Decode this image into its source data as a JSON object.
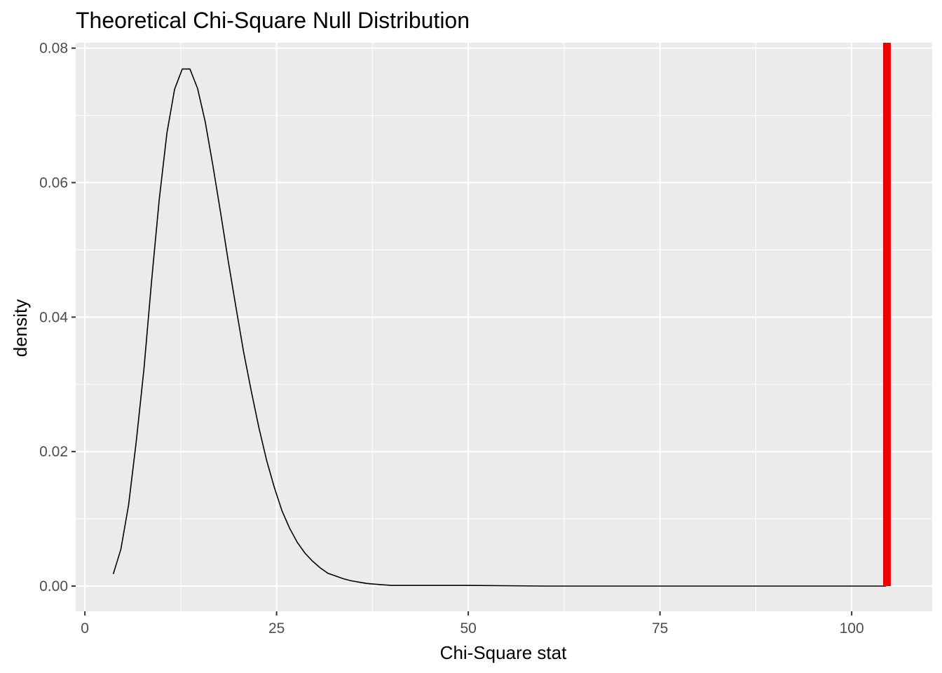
{
  "chart_data": {
    "type": "line",
    "title": "Theoretical Chi-Square Null Distribution",
    "xlabel": "Chi-Square stat",
    "ylabel": "density",
    "xlim": [
      -1.2,
      110.5
    ],
    "ylim": [
      -0.00375,
      0.0808
    ],
    "x_ticks": [
      0,
      25,
      50,
      75,
      100
    ],
    "x_tick_labels": [
      "0",
      "25",
      "50",
      "75",
      "100"
    ],
    "y_ticks": [
      0.0,
      0.02,
      0.04,
      0.06,
      0.08
    ],
    "y_tick_labels": [
      "0.00",
      "0.02",
      "0.04",
      "0.06",
      "0.08"
    ],
    "grid": true,
    "series": [
      {
        "color": "#000000",
        "x": [
          3.7,
          4.7,
          5.7,
          6.7,
          7.7,
          8.7,
          9.7,
          10.7,
          11.7,
          12.7,
          13.7,
          14.7,
          15.7,
          16.7,
          17.7,
          18.7,
          19.7,
          20.7,
          21.7,
          22.7,
          23.7,
          24.7,
          25.7,
          26.7,
          27.7,
          28.7,
          29.7,
          30.7,
          31.7,
          32.7,
          33.7,
          34.7,
          35.7,
          36.7,
          37.7,
          38.7,
          40,
          42,
          45,
          50,
          60,
          70,
          80,
          90,
          100,
          104.5
        ],
        "y": [
          0.0018,
          0.0055,
          0.0121,
          0.0215,
          0.0323,
          0.0454,
          0.0575,
          0.0674,
          0.0739,
          0.0769,
          0.0769,
          0.074,
          0.069,
          0.0625,
          0.0555,
          0.0483,
          0.0415,
          0.0348,
          0.029,
          0.0235,
          0.0187,
          0.0147,
          0.0112,
          0.0086,
          0.0065,
          0.0049,
          0.0037,
          0.0027,
          0.0019,
          0.0015,
          0.0011,
          0.0008,
          0.0006,
          0.0004,
          0.0003,
          0.0002,
          0.0001,
          0.0001,
          0.0001,
          0.0001,
          0.0,
          0.0,
          0.0,
          0.0,
          0.0,
          0.0
        ]
      }
    ],
    "vline": {
      "x": 104.6,
      "color": "#ee0000"
    }
  }
}
